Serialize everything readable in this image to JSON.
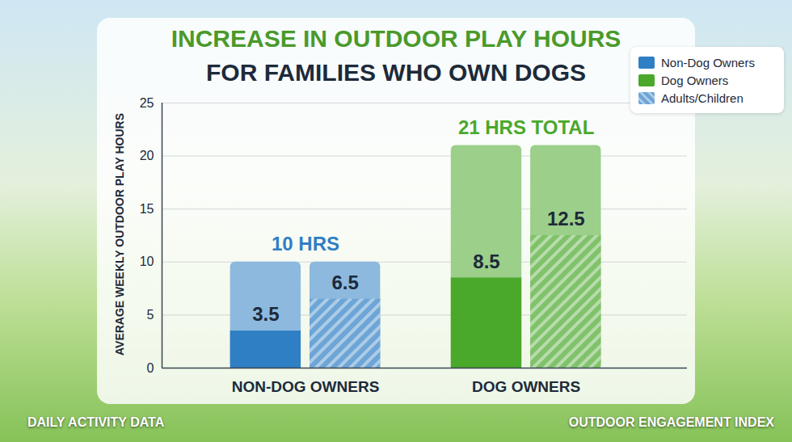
{
  "chart_data": {
    "type": "bar",
    "title": "INCREASE IN OUTDOOR PLAY HOURS",
    "subtitle": "FOR FAMILIES WHO OWN DOGS",
    "ylabel": "AVERAGE WEEKLY OUTDOOR PLAY HOURS",
    "categories": [
      "NON-DOG OWNERS",
      "DOG OWNERS"
    ],
    "series": [
      {
        "name": "Non-Dog Owners",
        "color": "#2f7fc4",
        "total": 10,
        "total_label": "10 HRS",
        "values": [
          3.5,
          6.5
        ]
      },
      {
        "name": "Dog Owners",
        "color": "#4aa82b",
        "total": 21,
        "total_label": "21 HRS TOTAL",
        "values": [
          8.5,
          12.5
        ]
      }
    ],
    "pattern_legend": {
      "name": "Adults/Children",
      "line_style": "hatched"
    },
    "ylim": [
      0,
      25
    ],
    "yticks": [
      0,
      5,
      10,
      15,
      20,
      25
    ],
    "grid": true,
    "legend": "top-right",
    "data_labels": true,
    "footer_left": "DAILY ACTIVITY DATA",
    "footer_right": "OUTDOOR ENGAGEMENT INDEX"
  }
}
